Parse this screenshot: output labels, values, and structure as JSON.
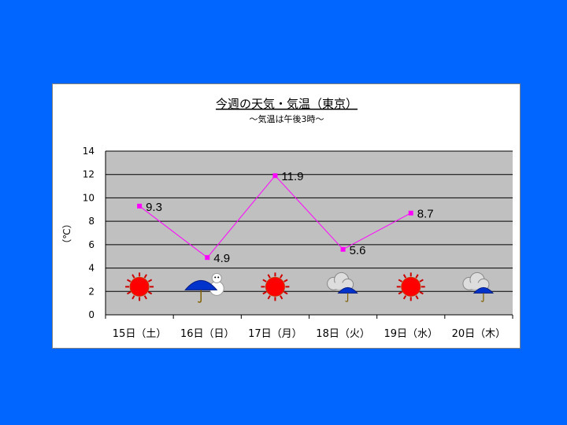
{
  "chart_data": {
    "type": "line",
    "title": "今週の天気・気温（東京）",
    "subtitle": "～気温は午後3時～",
    "ylabel": "（℃）",
    "xlabel": "",
    "ylim": [
      0,
      14
    ],
    "yticks": [
      "0",
      "2",
      "4",
      "6",
      "8",
      "10",
      "12",
      "14"
    ],
    "grid": true,
    "categories": [
      "15日（土）",
      "16日（日）",
      "17日（月）",
      "18日（火）",
      "19日（水）",
      "20日（木）"
    ],
    "values": [
      9.3,
      4.9,
      11.9,
      5.6,
      8.7,
      null
    ],
    "data_labels": [
      "9.3",
      "4.9",
      "11.9",
      "5.6",
      "8.7",
      ""
    ],
    "weather_icons": [
      "sun-icon",
      "umbrella-snowman-icon",
      "sun-icon",
      "cloud-rain-icon",
      "sun-icon",
      "cloud-rain-icon"
    ],
    "colors": {
      "background": "#0066ff",
      "plot_area": "#c0c0c0",
      "line": "#ff00ff",
      "marker": "#ff00ff",
      "sun": "#ff0000",
      "umbrella": "#0033cc"
    }
  }
}
